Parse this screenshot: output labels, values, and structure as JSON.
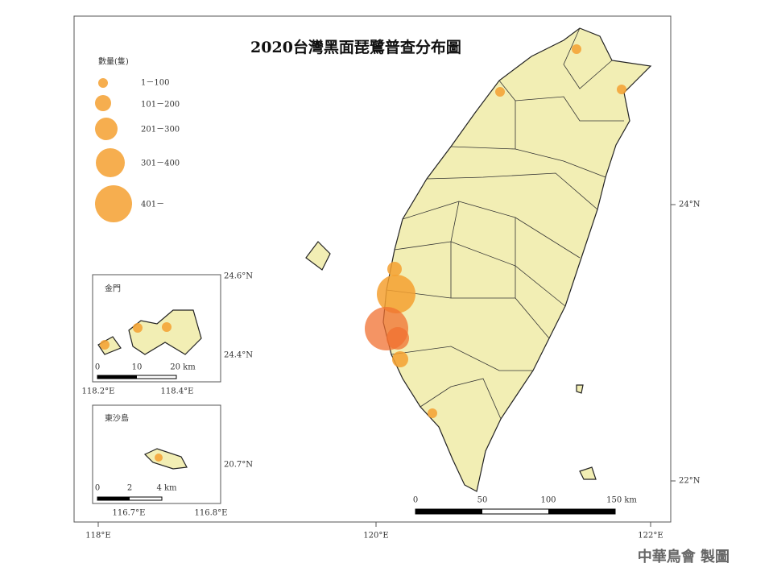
{
  "title": "2020台灣黑面琵鷺普查分布圖",
  "legend": {
    "title": "數量(隻)",
    "items": [
      "1－100",
      "101－200",
      "201－300",
      "301－400",
      "401－"
    ]
  },
  "axes": {
    "lon": [
      "118°E",
      "120°E",
      "122°E"
    ],
    "lat": [
      "24°N",
      "22°N"
    ]
  },
  "scale_bar": [
    "0",
    "50",
    "100",
    "150 km"
  ],
  "insets": [
    {
      "name": "金門",
      "lat": [
        "24.6°N",
        "24.4°N"
      ],
      "lon": [
        "118.2°E",
        "118.4°E"
      ],
      "scale_bar": [
        "0",
        "10",
        "20 km"
      ]
    },
    {
      "name": "東沙島",
      "lat": [
        "20.7°N"
      ],
      "lon": [
        "116.7°E",
        "116.8°E"
      ],
      "scale_bar": [
        "0",
        "2",
        "4 km"
      ]
    }
  ],
  "credit": "中華鳥會 製圖"
}
